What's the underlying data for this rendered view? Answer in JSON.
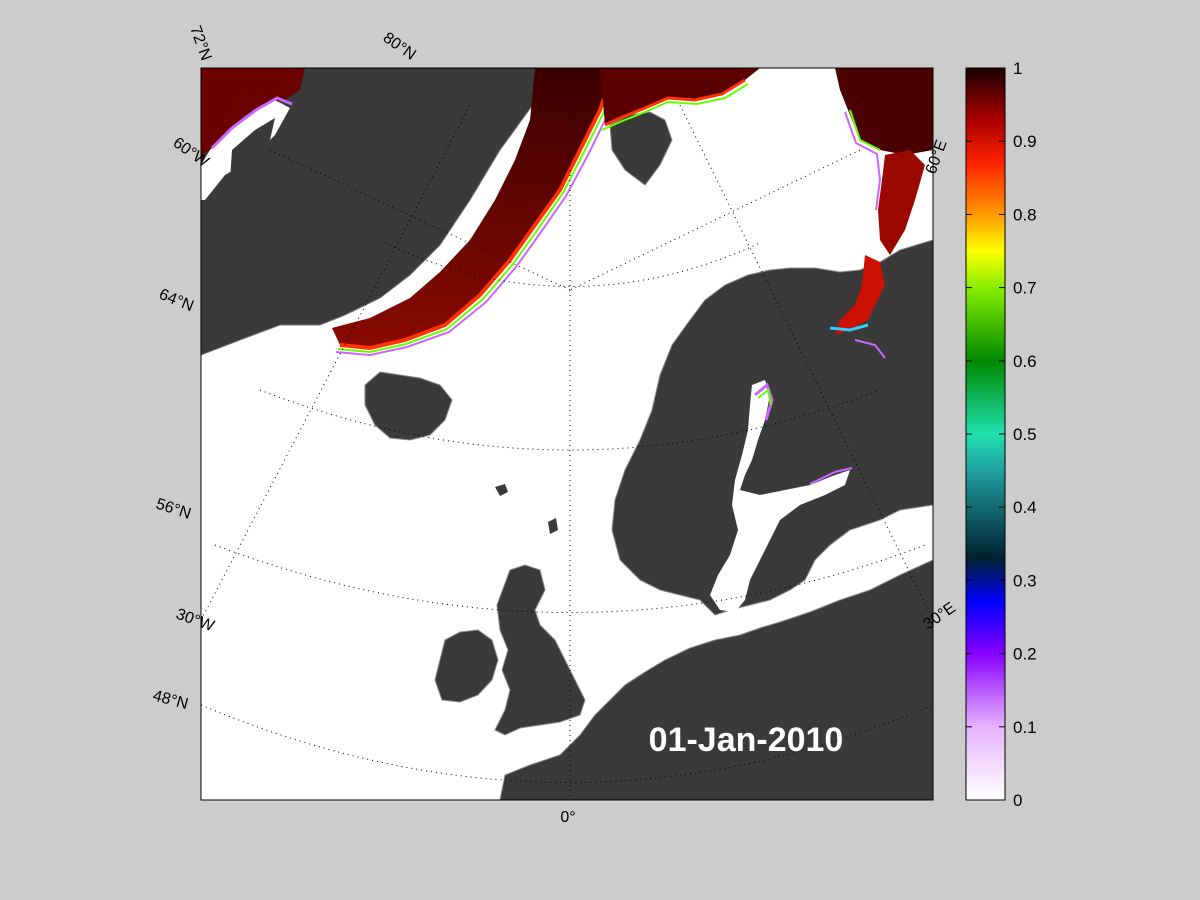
{
  "map": {
    "date_label": "01-Jan-2010",
    "labels": {
      "lat_72": "72°N",
      "lat_80": "80°N",
      "lon_60w": "60°W",
      "lat_64": "64°N",
      "lat_56": "56°N",
      "lon_30w": "30°W",
      "lat_48": "48°N",
      "lon_0": "0°",
      "lon_60e": "60°E",
      "lon_30e": "30°E"
    },
    "colors": {
      "ocean": "#ffffff",
      "land": "#3a3a3a",
      "land_edge": "#808080",
      "figure_bg": "#cccccc",
      "ice_full": "#5a0000"
    }
  },
  "colorbar": {
    "min": 0,
    "max": 1,
    "ticks": [
      "0",
      "0.1",
      "0.2",
      "0.3",
      "0.4",
      "0.5",
      "0.6",
      "0.7",
      "0.8",
      "0.9",
      "1"
    ],
    "colormap": [
      {
        "value": 0.0,
        "color": "#ffffff"
      },
      {
        "value": 0.1,
        "color": "#e6b3ff"
      },
      {
        "value": 0.2,
        "color": "#8800ff"
      },
      {
        "value": 0.27,
        "color": "#0000ff"
      },
      {
        "value": 0.33,
        "color": "#002030"
      },
      {
        "value": 0.45,
        "color": "#20a0a0"
      },
      {
        "value": 0.5,
        "color": "#20e0b0"
      },
      {
        "value": 0.6,
        "color": "#008800"
      },
      {
        "value": 0.7,
        "color": "#88ee00"
      },
      {
        "value": 0.75,
        "color": "#ffff00"
      },
      {
        "value": 0.8,
        "color": "#ff9900"
      },
      {
        "value": 0.87,
        "color": "#ff2200"
      },
      {
        "value": 0.93,
        "color": "#aa0000"
      },
      {
        "value": 1.0,
        "color": "#1a0000"
      }
    ]
  }
}
